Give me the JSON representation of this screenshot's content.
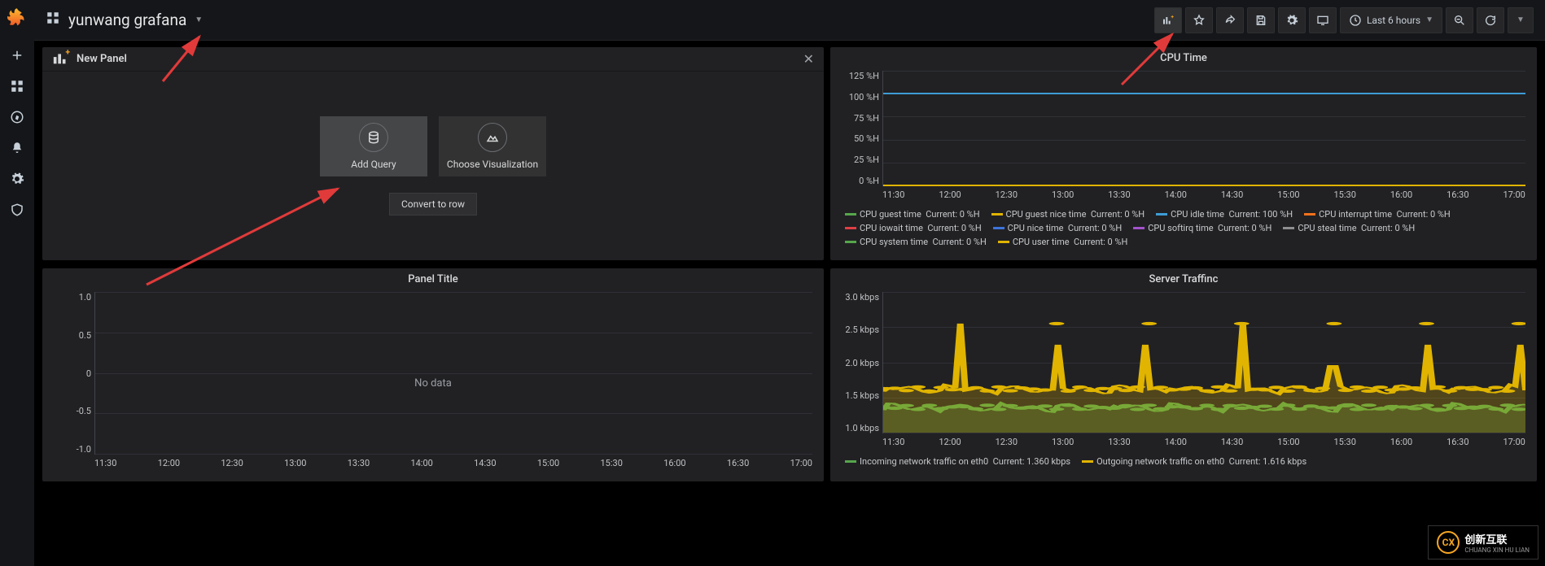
{
  "header": {
    "dashboard_title": "yunwang grafana",
    "time_range_label": "Last 6 hours"
  },
  "side_nav_icons": [
    "plus-icon",
    "apps-icon",
    "compass-icon",
    "bell-icon",
    "gear-icon",
    "shield-icon"
  ],
  "new_panel": {
    "title": "New Panel",
    "add_query": "Add Query",
    "choose_viz": "Choose Visualization",
    "convert": "Convert to row"
  },
  "cpu_panel": {
    "title": "CPU Time",
    "y_axis": {
      "labels": [
        "125 %H",
        "100 %H",
        "75 %H",
        "50 %H",
        "25 %H",
        "0 %H"
      ],
      "min": 0,
      "max": 125,
      "unit": "%H"
    },
    "x_axis": {
      "labels": [
        "11:30",
        "12:00",
        "12:30",
        "13:00",
        "13:30",
        "14:00",
        "14:30",
        "15:00",
        "15:30",
        "16:00",
        "16:30",
        "17:00"
      ]
    },
    "grid_color": "#2f3136",
    "background": "#212124",
    "series": [
      {
        "name": "CPU guest time",
        "color": "#56a64b",
        "current": "0 %H",
        "value": 0
      },
      {
        "name": "CPU guest nice time",
        "color": "#e0b400",
        "current": "0 %H",
        "value": 0
      },
      {
        "name": "CPU idle time",
        "color": "#3e9cd4",
        "current": "100 %H",
        "value": 100
      },
      {
        "name": "CPU interrupt time",
        "color": "#f2711c",
        "current": "0 %H",
        "value": 0
      },
      {
        "name": "CPU iowait time",
        "color": "#e03f44",
        "current": "0 %H",
        "value": 0
      },
      {
        "name": "CPU nice time",
        "color": "#3d74db",
        "current": "0 %H",
        "value": 0
      },
      {
        "name": "CPU softirq time",
        "color": "#a352cc",
        "current": "0 %H",
        "value": 0
      },
      {
        "name": "CPU steal time",
        "color": "#8e8e90",
        "current": "0 %H",
        "value": 0
      },
      {
        "name": "CPU system time",
        "color": "#56a64b",
        "current": "0 %H",
        "value": 0
      },
      {
        "name": "CPU user time",
        "color": "#e0b400",
        "current": "0 %H",
        "value": 0
      }
    ]
  },
  "empty_panel": {
    "title": "Panel Title",
    "no_data": "No data",
    "y_axis": {
      "labels": [
        "1.0",
        "0.5",
        "0",
        "-0.5",
        "-1.0"
      ],
      "min": -1,
      "max": 1
    },
    "x_axis": {
      "labels": [
        "11:30",
        "12:00",
        "12:30",
        "13:00",
        "13:30",
        "14:00",
        "14:30",
        "15:00",
        "15:30",
        "16:00",
        "16:30",
        "17:00"
      ]
    },
    "grid_color": "#2f3136"
  },
  "traffic_panel": {
    "title": "Server Traffinc",
    "y_axis": {
      "labels": [
        "3.0 kbps",
        "2.5 kbps",
        "2.0 kbps",
        "1.5 kbps",
        "1.0 kbps"
      ],
      "min": 1.0,
      "max": 3.0,
      "unit": "kbps"
    },
    "x_axis": {
      "labels": [
        "11:30",
        "12:00",
        "12:30",
        "13:00",
        "13:30",
        "14:00",
        "14:30",
        "15:00",
        "15:30",
        "16:00",
        "16:30",
        "17:00"
      ]
    },
    "grid_color": "#2f3136",
    "series": [
      {
        "name": "Incoming network traffic on eth0",
        "color": "#56a64b",
        "current": "1.360 kbps",
        "baseline": 1.36,
        "spikes": []
      },
      {
        "name": "Outgoing network traffic on eth0",
        "color": "#e0b400",
        "current": "1.616 kbps",
        "baseline": 1.62,
        "spike_height": 2.55,
        "spike_positions_pct": [
          12,
          27,
          41,
          56,
          70,
          85,
          99
        ]
      }
    ],
    "fill_opacity": 0.25
  },
  "watermark": {
    "brand": "创新互联",
    "sub": "CHUANG XIN HU LIAN"
  },
  "annotation_color": "#e13a3a"
}
